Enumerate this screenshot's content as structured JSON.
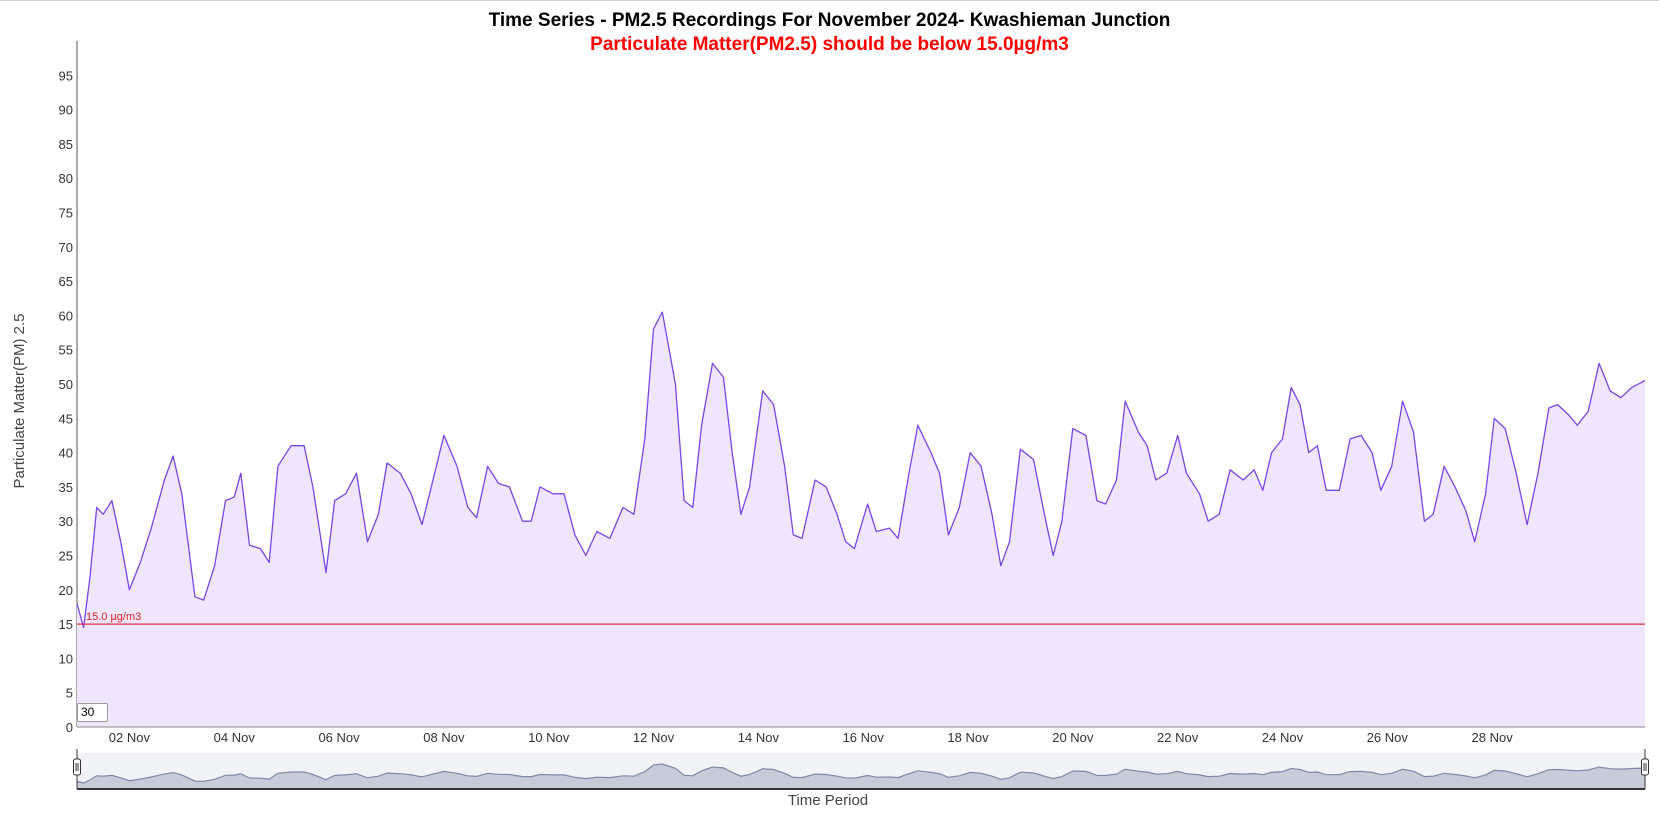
{
  "chart_data": {
    "type": "area",
    "title": "Time Series - PM2.5 Recordings For November 2024- Kwashieman Junction",
    "subtitle": "Particulate Matter(PM2.5) should be below 15.0µg/m3",
    "xlabel": "Time Period",
    "ylabel": "Particulate Matter(PM) 2.5",
    "x_range": [
      "2024-11-01",
      "2024-11-30"
    ],
    "ylim": [
      0,
      100
    ],
    "y_ticks": [
      0,
      5,
      10,
      15,
      20,
      25,
      30,
      35,
      40,
      45,
      50,
      55,
      60,
      65,
      70,
      75,
      80,
      85,
      90,
      95
    ],
    "x_ticks": [
      {
        "date": "2024-11-02",
        "label": "02 Nov"
      },
      {
        "date": "2024-11-04",
        "label": "04 Nov"
      },
      {
        "date": "2024-11-06",
        "label": "06 Nov"
      },
      {
        "date": "2024-11-08",
        "label": "08 Nov"
      },
      {
        "date": "2024-11-10",
        "label": "10 Nov"
      },
      {
        "date": "2024-11-12",
        "label": "12 Nov"
      },
      {
        "date": "2024-11-14",
        "label": "14 Nov"
      },
      {
        "date": "2024-11-16",
        "label": "16 Nov"
      },
      {
        "date": "2024-11-18",
        "label": "18 Nov"
      },
      {
        "date": "2024-11-20",
        "label": "20 Nov"
      },
      {
        "date": "2024-11-22",
        "label": "22 Nov"
      },
      {
        "date": "2024-11-24",
        "label": "24 Nov"
      },
      {
        "date": "2024-11-26",
        "label": "26 Nov"
      },
      {
        "date": "2024-11-28",
        "label": "28 Nov"
      }
    ],
    "threshold": {
      "value": 15.0,
      "label": "15.0 µg/m3",
      "color": "#e03040"
    },
    "zoom_input_value": "30",
    "grid": false,
    "legend": "none",
    "colors": {
      "line": "#7a45e6",
      "fill": "#efe6fd",
      "navigator_line": "#7f8aa8",
      "navigator_fill": "#c7ccd8"
    },
    "series": [
      {
        "points": [
          [
            "2024-11-01 00:00",
            18
          ],
          [
            "2024-11-01 03:00",
            14.5
          ],
          [
            "2024-11-01 06:00",
            22
          ],
          [
            "2024-11-01 09:00",
            32
          ],
          [
            "2024-11-01 12:00",
            31
          ],
          [
            "2024-11-01 16:00",
            33
          ],
          [
            "2024-11-01 20:00",
            27
          ],
          [
            "2024-11-02 00:00",
            20
          ],
          [
            "2024-11-02 05:00",
            24
          ],
          [
            "2024-11-02 10:00",
            29
          ],
          [
            "2024-11-02 16:00",
            36
          ],
          [
            "2024-11-02 20:00",
            39.5
          ],
          [
            "2024-11-03 00:00",
            34
          ],
          [
            "2024-11-03 06:00",
            19
          ],
          [
            "2024-11-03 10:00",
            18.5
          ],
          [
            "2024-11-03 15:00",
            23.5
          ],
          [
            "2024-11-03 20:00",
            33
          ],
          [
            "2024-11-04 00:00",
            33.5
          ],
          [
            "2024-11-04 03:00",
            37
          ],
          [
            "2024-11-04 07:00",
            26.5
          ],
          [
            "2024-11-04 12:00",
            26
          ],
          [
            "2024-11-04 16:00",
            24
          ],
          [
            "2024-11-04 20:00",
            38
          ],
          [
            "2024-11-05 02:00",
            41
          ],
          [
            "2024-11-05 08:00",
            41
          ],
          [
            "2024-11-05 12:00",
            35
          ],
          [
            "2024-11-05 18:00",
            22.5
          ],
          [
            "2024-11-05 22:00",
            33
          ],
          [
            "2024-11-06 03:00",
            34
          ],
          [
            "2024-11-06 08:00",
            37
          ],
          [
            "2024-11-06 13:00",
            27
          ],
          [
            "2024-11-06 18:00",
            31
          ],
          [
            "2024-11-06 22:00",
            38.5
          ],
          [
            "2024-11-07 04:00",
            37
          ],
          [
            "2024-11-07 09:00",
            34
          ],
          [
            "2024-11-07 14:00",
            29.5
          ],
          [
            "2024-11-07 19:00",
            36
          ],
          [
            "2024-11-08 00:00",
            42.5
          ],
          [
            "2024-11-08 06:00",
            38
          ],
          [
            "2024-11-08 11:00",
            32
          ],
          [
            "2024-11-08 15:00",
            30.5
          ],
          [
            "2024-11-08 20:00",
            38
          ],
          [
            "2024-11-09 01:00",
            35.5
          ],
          [
            "2024-11-09 06:00",
            35
          ],
          [
            "2024-11-09 12:00",
            30
          ],
          [
            "2024-11-09 16:00",
            30
          ],
          [
            "2024-11-09 20:00",
            35
          ],
          [
            "2024-11-10 02:00",
            34
          ],
          [
            "2024-11-10 07:00",
            34
          ],
          [
            "2024-11-10 12:00",
            28
          ],
          [
            "2024-11-10 17:00",
            25
          ],
          [
            "2024-11-10 22:00",
            28.5
          ],
          [
            "2024-11-11 04:00",
            27.5
          ],
          [
            "2024-11-11 10:00",
            32
          ],
          [
            "2024-11-11 15:00",
            31
          ],
          [
            "2024-11-11 20:00",
            42
          ],
          [
            "2024-11-12 00:00",
            58
          ],
          [
            "2024-11-12 04:00",
            60.5
          ],
          [
            "2024-11-12 10:00",
            50
          ],
          [
            "2024-11-12 14:00",
            33
          ],
          [
            "2024-11-12 18:00",
            32
          ],
          [
            "2024-11-12 22:00",
            44
          ],
          [
            "2024-11-13 03:00",
            53
          ],
          [
            "2024-11-13 08:00",
            51
          ],
          [
            "2024-11-13 12:00",
            40
          ],
          [
            "2024-11-13 16:00",
            31
          ],
          [
            "2024-11-13 20:00",
            35
          ],
          [
            "2024-11-14 02:00",
            49
          ],
          [
            "2024-11-14 07:00",
            47
          ],
          [
            "2024-11-14 12:00",
            38
          ],
          [
            "2024-11-14 16:00",
            28
          ],
          [
            "2024-11-14 20:00",
            27.5
          ],
          [
            "2024-11-15 02:00",
            36
          ],
          [
            "2024-11-15 07:00",
            35
          ],
          [
            "2024-11-15 12:00",
            31
          ],
          [
            "2024-11-15 16:00",
            27
          ],
          [
            "2024-11-15 20:00",
            26
          ],
          [
            "2024-11-16 02:00",
            32.5
          ],
          [
            "2024-11-16 06:00",
            28.5
          ],
          [
            "2024-11-16 12:00",
            29
          ],
          [
            "2024-11-16 16:00",
            27.5
          ],
          [
            "2024-11-16 21:00",
            37
          ],
          [
            "2024-11-17 01:00",
            44
          ],
          [
            "2024-11-17 07:00",
            40
          ],
          [
            "2024-11-17 11:00",
            37
          ],
          [
            "2024-11-17 15:00",
            28
          ],
          [
            "2024-11-17 20:00",
            32
          ],
          [
            "2024-11-18 01:00",
            40
          ],
          [
            "2024-11-18 06:00",
            38
          ],
          [
            "2024-11-18 11:00",
            31
          ],
          [
            "2024-11-18 15:00",
            23.5
          ],
          [
            "2024-11-18 19:00",
            27
          ],
          [
            "2024-11-19 00:00",
            40.5
          ],
          [
            "2024-11-19 06:00",
            39
          ],
          [
            "2024-11-19 11:00",
            31
          ],
          [
            "2024-11-19 15:00",
            25
          ],
          [
            "2024-11-19 19:00",
            30
          ],
          [
            "2024-11-20 00:00",
            43.5
          ],
          [
            "2024-11-20 06:00",
            42.5
          ],
          [
            "2024-11-20 11:00",
            33
          ],
          [
            "2024-11-20 15:00",
            32.5
          ],
          [
            "2024-11-20 20:00",
            36
          ],
          [
            "2024-11-21 00:00",
            47.5
          ],
          [
            "2024-11-21 06:00",
            43
          ],
          [
            "2024-11-21 10:00",
            41
          ],
          [
            "2024-11-21 14:00",
            36
          ],
          [
            "2024-11-21 19:00",
            37
          ],
          [
            "2024-11-22 00:00",
            42.5
          ],
          [
            "2024-11-22 04:00",
            37
          ],
          [
            "2024-11-22 10:00",
            34
          ],
          [
            "2024-11-22 14:00",
            30
          ],
          [
            "2024-11-22 19:00",
            31
          ],
          [
            "2024-11-23 00:00",
            37.5
          ],
          [
            "2024-11-23 06:00",
            36
          ],
          [
            "2024-11-23 11:00",
            37.5
          ],
          [
            "2024-11-23 15:00",
            34.5
          ],
          [
            "2024-11-23 19:00",
            40
          ],
          [
            "2024-11-24 00:00",
            42
          ],
          [
            "2024-11-24 04:00",
            49.5
          ],
          [
            "2024-11-24 08:00",
            47
          ],
          [
            "2024-11-24 12:00",
            40
          ],
          [
            "2024-11-24 16:00",
            41
          ],
          [
            "2024-11-24 20:00",
            34.5
          ],
          [
            "2024-11-25 02:00",
            34.5
          ],
          [
            "2024-11-25 07:00",
            42
          ],
          [
            "2024-11-25 12:00",
            42.5
          ],
          [
            "2024-11-25 17:00",
            40
          ],
          [
            "2024-11-25 21:00",
            34.5
          ],
          [
            "2024-11-26 02:00",
            38
          ],
          [
            "2024-11-26 07:00",
            47.5
          ],
          [
            "2024-11-26 12:00",
            43
          ],
          [
            "2024-11-26 17:00",
            30
          ],
          [
            "2024-11-26 21:00",
            31
          ],
          [
            "2024-11-27 02:00",
            38
          ],
          [
            "2024-11-27 07:00",
            35
          ],
          [
            "2024-11-27 12:00",
            31.5
          ],
          [
            "2024-11-27 16:00",
            27
          ],
          [
            "2024-11-27 21:00",
            34
          ],
          [
            "2024-11-28 01:00",
            45
          ],
          [
            "2024-11-28 06:00",
            43.5
          ],
          [
            "2024-11-28 11:00",
            37
          ],
          [
            "2024-11-28 16:00",
            29.5
          ],
          [
            "2024-11-28 21:00",
            37
          ],
          [
            "2024-11-29 02:00",
            46.5
          ],
          [
            "2024-11-29 06:00",
            47
          ],
          [
            "2024-11-29 11:00",
            45.5
          ],
          [
            "2024-11-29 15:00",
            44
          ],
          [
            "2024-11-29 20:00",
            46
          ],
          [
            "2024-11-30 01:00",
            53
          ],
          [
            "2024-11-30 06:00",
            49
          ],
          [
            "2024-11-30 11:00",
            48
          ],
          [
            "2024-11-30 16:00",
            49.5
          ],
          [
            "2024-11-30 22:00",
            50.5
          ]
        ]
      }
    ]
  }
}
